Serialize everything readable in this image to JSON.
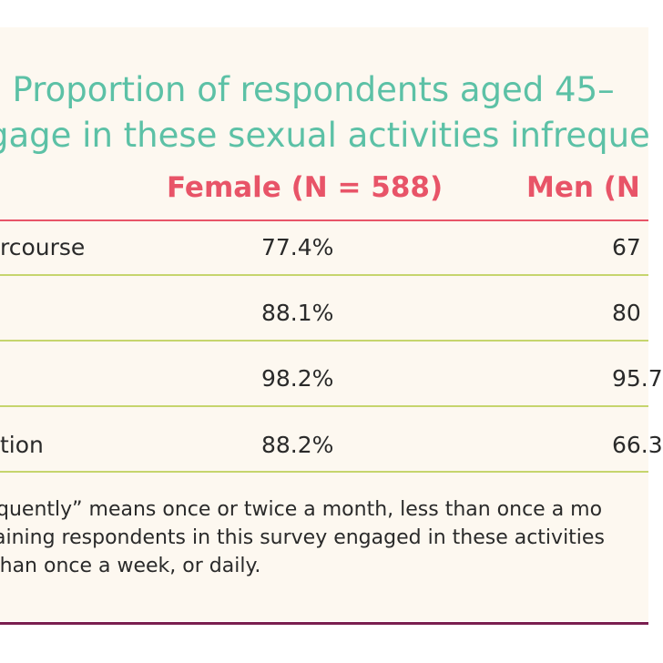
{
  "title": {
    "number": ".",
    "line1": " Proportion of respondents aged 45–",
    "line2": "gage in these sexual activities infreque"
  },
  "table": {
    "columns": [
      "Female (N = 588)",
      "Men (N"
    ],
    "rows": [
      {
        "label": "rcourse",
        "female": "77.4%",
        "men": "67"
      },
      {
        "label": "",
        "female": "88.1%",
        "men": "80"
      },
      {
        "label": "",
        "female": "98.2%",
        "men": "95.7"
      },
      {
        "label": "tion",
        "female": "88.2%",
        "men": "66.3"
      }
    ]
  },
  "footnote": {
    "line1": "quently” means once or twice a month, less than once a mo",
    "line2": "aining respondents in this survey engaged in these activities",
    "line3": "than once a week, or daily."
  },
  "colors": {
    "title": "#5cc1a6",
    "accent_number": "#f0913a",
    "header": "#e85468",
    "row_rule": "#c6d56d",
    "panel": "#fdf8f0",
    "bottom_rule": "#7a1f4f"
  }
}
